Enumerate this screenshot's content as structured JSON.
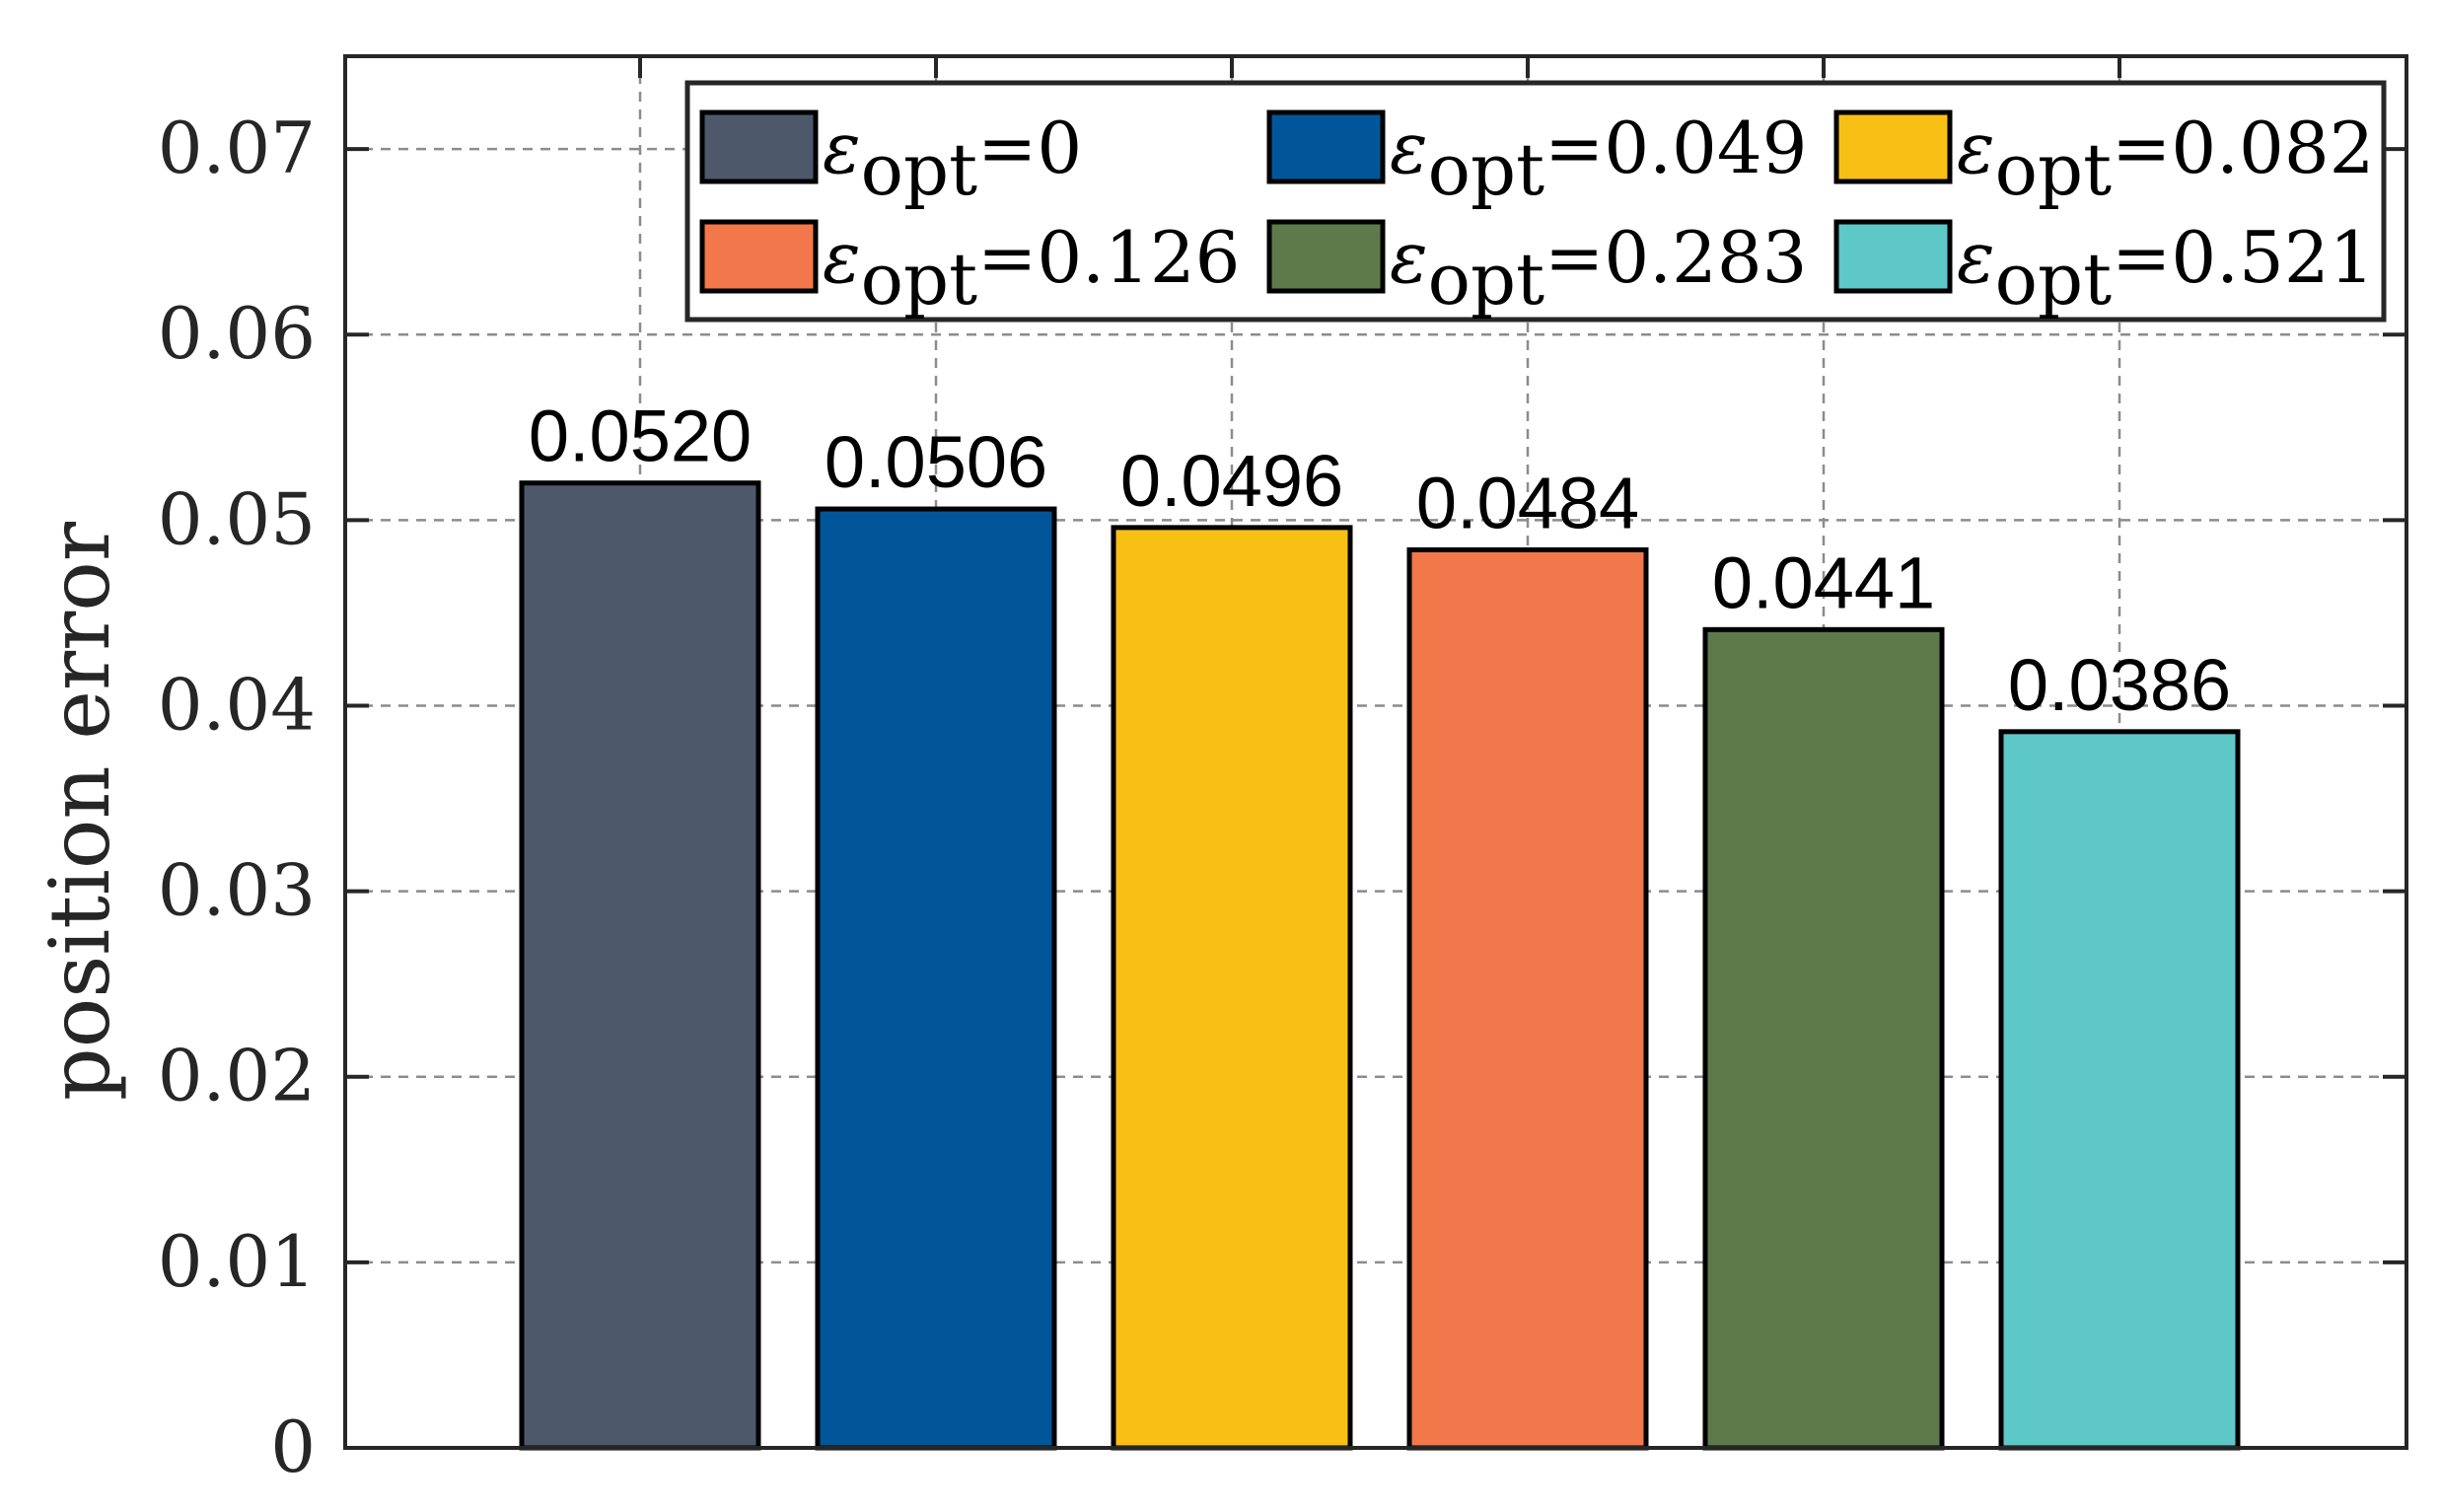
{
  "chart_data": {
    "type": "bar",
    "title": "",
    "xlabel": "",
    "ylabel": "position error",
    "ylim": [
      0,
      0.075
    ],
    "yticks": [
      {
        "value": 0,
        "label": "0"
      },
      {
        "value": 0.01,
        "label": "0.01"
      },
      {
        "value": 0.02,
        "label": "0.02"
      },
      {
        "value": 0.03,
        "label": "0.03"
      },
      {
        "value": 0.04,
        "label": "0.04"
      },
      {
        "value": 0.05,
        "label": "0.05"
      },
      {
        "value": 0.06,
        "label": "0.06"
      },
      {
        "value": 0.07,
        "label": "0.07"
      }
    ],
    "grid": true,
    "legend_position": "top-right",
    "legend_columns": 3,
    "series": [
      {
        "symbol": "ε",
        "subscript": "opt",
        "eq_value": "0",
        "value": 0.052,
        "label": "0.0520",
        "color": "#4d596b"
      },
      {
        "symbol": "ε",
        "subscript": "opt",
        "eq_value": "0.049",
        "value": 0.0506,
        "label": "0.0506",
        "color": "#015699"
      },
      {
        "symbol": "ε",
        "subscript": "opt",
        "eq_value": "0.082",
        "value": 0.0496,
        "label": "0.0496",
        "color": "#f8bf14"
      },
      {
        "symbol": "ε",
        "subscript": "opt",
        "eq_value": "0.126",
        "value": 0.0484,
        "label": "0.0484",
        "color": "#f2784c"
      },
      {
        "symbol": "ε",
        "subscript": "opt",
        "eq_value": "0.283",
        "value": 0.0441,
        "label": "0.0441",
        "color": "#5e7a4a"
      },
      {
        "symbol": "ε",
        "subscript": "opt",
        "eq_value": "0.521",
        "value": 0.0386,
        "label": "0.0386",
        "color": "#5ec7c8"
      }
    ]
  }
}
